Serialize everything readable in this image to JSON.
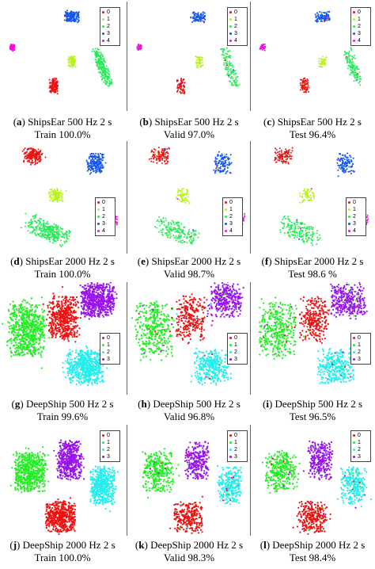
{
  "panels": [
    {
      "letter": "a",
      "line1": "ShipsEar 500 Hz 2 s",
      "line2": "Train 100.0%",
      "dataset": "shipsear",
      "split": "train"
    },
    {
      "letter": "b",
      "line1": "ShipsEar 500 Hz 2 s",
      "line2": "Valid 97.0%",
      "dataset": "shipsear",
      "split": "valid"
    },
    {
      "letter": "c",
      "line1": "ShipsEar 500 Hz 2 s",
      "line2": "Test 96.4%",
      "dataset": "shipsear",
      "split": "test"
    },
    {
      "letter": "d",
      "line1": "ShipsEar 2000 Hz 2 s",
      "line2": "Train 100.0%",
      "dataset": "shipsear2",
      "split": "train"
    },
    {
      "letter": "e",
      "line1": "ShipsEar 2000 Hz 2 s",
      "line2": "Valid 98.7%",
      "dataset": "shipsear2",
      "split": "valid"
    },
    {
      "letter": "f",
      "line1": "ShipsEar 2000 Hz 2 s",
      "line2": "Test 98.6 %",
      "dataset": "shipsear2",
      "split": "test"
    },
    {
      "letter": "g",
      "line1": "DeepShip 500 Hz 2 s",
      "line2": "Train 99.6%",
      "dataset": "deepship",
      "split": "train"
    },
    {
      "letter": "h",
      "line1": "DeepShip 500 Hz 2 s",
      "line2": "Valid 96.8%",
      "dataset": "deepship",
      "split": "valid"
    },
    {
      "letter": "i",
      "line1": "DeepShip 500 Hz 2 s",
      "line2": "Test 96.5%",
      "dataset": "deepship",
      "split": "test"
    },
    {
      "letter": "j",
      "line1": "DeepShip 2000 Hz 2 s",
      "line2": "Train 100.0%",
      "dataset": "deepship2",
      "split": "train"
    },
    {
      "letter": "k",
      "line1": "DeepShip 2000 Hz 2 s",
      "line2": "Valid 98.3%",
      "dataset": "deepship2",
      "split": "valid"
    },
    {
      "letter": "l",
      "line1": "DeepShip 2000 Hz 2 s",
      "line2": "Test 98.4%",
      "dataset": "deepship2",
      "split": "test"
    }
  ],
  "legends": {
    "shipsear": [
      "0",
      "1",
      "2",
      "3",
      "4"
    ],
    "deepship": [
      "0",
      "1",
      "2",
      "3"
    ]
  },
  "colors": {
    "class0": "#ee1111",
    "class1": "#b8f21a",
    "class2": "#22ee55",
    "class3": "#1155ee",
    "class4": "#ee11dd",
    "ds0": "#ee1111",
    "ds1": "#22ee22",
    "ds2": "#22eeee",
    "ds3": "#9911ee"
  },
  "chart_data": [
    {
      "type": "scatter",
      "panel": "a",
      "series": [
        {
          "name": "0"
        },
        {
          "name": "1"
        },
        {
          "name": "2"
        },
        {
          "name": "3"
        },
        {
          "name": "4"
        }
      ]
    },
    {
      "type": "scatter",
      "panel": "b",
      "series": [
        {
          "name": "0"
        },
        {
          "name": "1"
        },
        {
          "name": "2"
        },
        {
          "name": "3"
        },
        {
          "name": "4"
        }
      ]
    },
    {
      "type": "scatter",
      "panel": "c",
      "series": [
        {
          "name": "0"
        },
        {
          "name": "1"
        },
        {
          "name": "2"
        },
        {
          "name": "3"
        },
        {
          "name": "4"
        }
      ]
    },
    {
      "type": "scatter",
      "panel": "d",
      "series": [
        {
          "name": "0"
        },
        {
          "name": "1"
        },
        {
          "name": "2"
        },
        {
          "name": "3"
        },
        {
          "name": "4"
        }
      ]
    },
    {
      "type": "scatter",
      "panel": "e",
      "series": [
        {
          "name": "0"
        },
        {
          "name": "1"
        },
        {
          "name": "2"
        },
        {
          "name": "3"
        },
        {
          "name": "4"
        }
      ]
    },
    {
      "type": "scatter",
      "panel": "f",
      "series": [
        {
          "name": "0"
        },
        {
          "name": "1"
        },
        {
          "name": "2"
        },
        {
          "name": "3"
        },
        {
          "name": "4"
        }
      ]
    },
    {
      "type": "scatter",
      "panel": "g",
      "series": [
        {
          "name": "0"
        },
        {
          "name": "1"
        },
        {
          "name": "2"
        },
        {
          "name": "3"
        }
      ]
    },
    {
      "type": "scatter",
      "panel": "h",
      "series": [
        {
          "name": "0"
        },
        {
          "name": "1"
        },
        {
          "name": "2"
        },
        {
          "name": "3"
        }
      ]
    },
    {
      "type": "scatter",
      "panel": "i",
      "series": [
        {
          "name": "0"
        },
        {
          "name": "1"
        },
        {
          "name": "2"
        },
        {
          "name": "3"
        }
      ]
    },
    {
      "type": "scatter",
      "panel": "j",
      "series": [
        {
          "name": "0"
        },
        {
          "name": "1"
        },
        {
          "name": "2"
        },
        {
          "name": "3"
        }
      ]
    },
    {
      "type": "scatter",
      "panel": "k",
      "series": [
        {
          "name": "0"
        },
        {
          "name": "1"
        },
        {
          "name": "2"
        },
        {
          "name": "3"
        }
      ]
    },
    {
      "type": "scatter",
      "panel": "l",
      "series": [
        {
          "name": "0"
        },
        {
          "name": "1"
        },
        {
          "name": "2"
        },
        {
          "name": "3"
        }
      ]
    }
  ]
}
